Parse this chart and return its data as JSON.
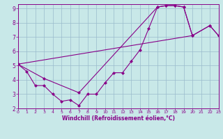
{
  "bg_color": "#c8e8e8",
  "line_color": "#880088",
  "grid_color": "#99bbcc",
  "xlim": [
    0,
    23
  ],
  "ylim": [
    2,
    9.3
  ],
  "xticks": [
    0,
    1,
    2,
    3,
    4,
    5,
    6,
    7,
    8,
    9,
    10,
    11,
    12,
    13,
    14,
    15,
    16,
    17,
    18,
    19,
    20,
    21,
    22,
    23
  ],
  "yticks": [
    2,
    3,
    4,
    5,
    6,
    7,
    8,
    9
  ],
  "xlabel": "Windchill (Refroidissement éolien,°C)",
  "series1_x": [
    0,
    1,
    2,
    3,
    4,
    5,
    6,
    7,
    8,
    9,
    10,
    11,
    12,
    13,
    14,
    15,
    16,
    17,
    18,
    19,
    20
  ],
  "series1_y": [
    5.1,
    4.6,
    3.6,
    3.6,
    3.0,
    2.5,
    2.6,
    2.2,
    3.0,
    3.0,
    3.8,
    4.5,
    4.5,
    5.3,
    6.1,
    7.6,
    9.1,
    9.2,
    9.2,
    9.1,
    7.1
  ],
  "series2_x": [
    0,
    3,
    7,
    16,
    17,
    18,
    19,
    20,
    22,
    23
  ],
  "series2_y": [
    5.1,
    4.1,
    3.1,
    9.1,
    9.2,
    9.2,
    9.1,
    7.1,
    7.8,
    7.1
  ],
  "series3_x": [
    0,
    20,
    22,
    23
  ],
  "series3_y": [
    5.1,
    7.1,
    7.8,
    7.1
  ]
}
